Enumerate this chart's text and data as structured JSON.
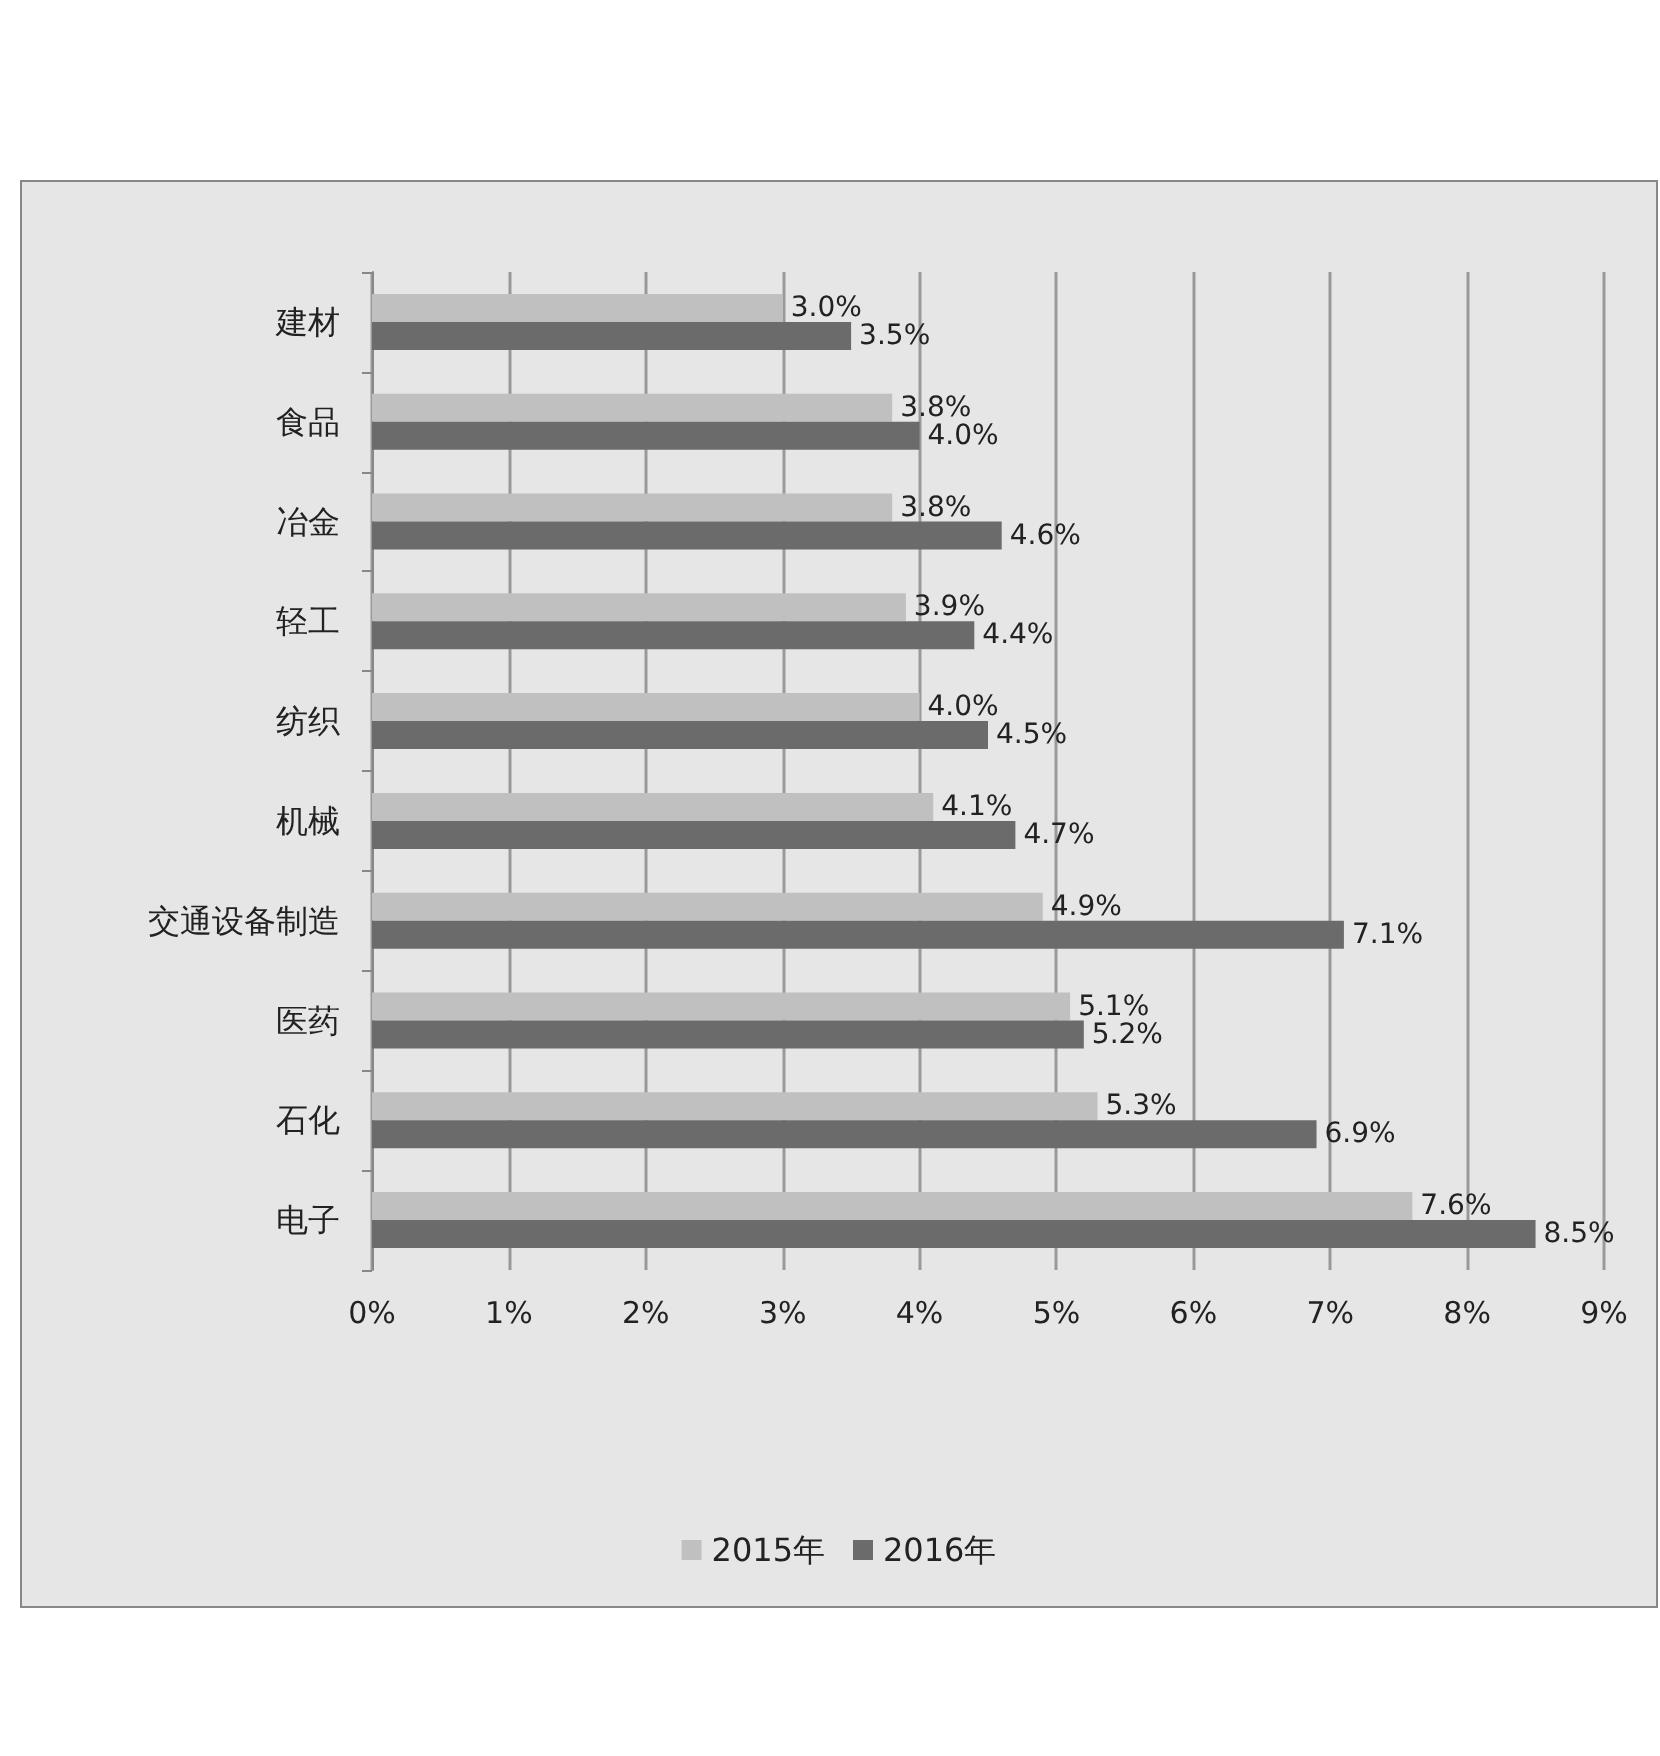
{
  "chart_data": {
    "type": "bar",
    "orientation": "horizontal",
    "categories": [
      "建材",
      "食品",
      "冶金",
      "轻工",
      "纺织",
      "机械",
      "交通设备制造",
      "医药",
      "石化",
      "电子"
    ],
    "series": [
      {
        "name": "2015年",
        "color": "#c0c0c0",
        "values": [
          3.0,
          3.8,
          3.8,
          3.9,
          4.0,
          4.1,
          4.9,
          5.1,
          5.3,
          7.6
        ],
        "value_labels": [
          "3.0%",
          "3.8%",
          "3.8%",
          "3.9%",
          "4.0%",
          "4.1%",
          "4.9%",
          "5.1%",
          "5.3%",
          "7.6%"
        ]
      },
      {
        "name": "2016年",
        "color": "#6b6b6b",
        "values": [
          3.5,
          4.0,
          4.6,
          4.4,
          4.5,
          4.7,
          7.1,
          5.2,
          6.9,
          8.5
        ],
        "value_labels": [
          "3.5%",
          "4.0%",
          "4.6%",
          "4.4%",
          "4.5%",
          "4.7%",
          "7.1%",
          "5.2%",
          "6.9%",
          "8.5%"
        ]
      }
    ],
    "xlim": [
      0,
      9
    ],
    "xticks": [
      {
        "value": 0,
        "label": "0%"
      },
      {
        "value": 1,
        "label": "1%"
      },
      {
        "value": 2,
        "label": "2%"
      },
      {
        "value": 3,
        "label": "3%"
      },
      {
        "value": 4,
        "label": "4%"
      },
      {
        "value": 5,
        "label": "5%"
      },
      {
        "value": 6,
        "label": "6%"
      },
      {
        "value": 7,
        "label": "7%"
      },
      {
        "value": 8,
        "label": "8%"
      },
      {
        "value": 9,
        "label": "9%"
      }
    ],
    "grid": "x",
    "legend": "bottom"
  }
}
